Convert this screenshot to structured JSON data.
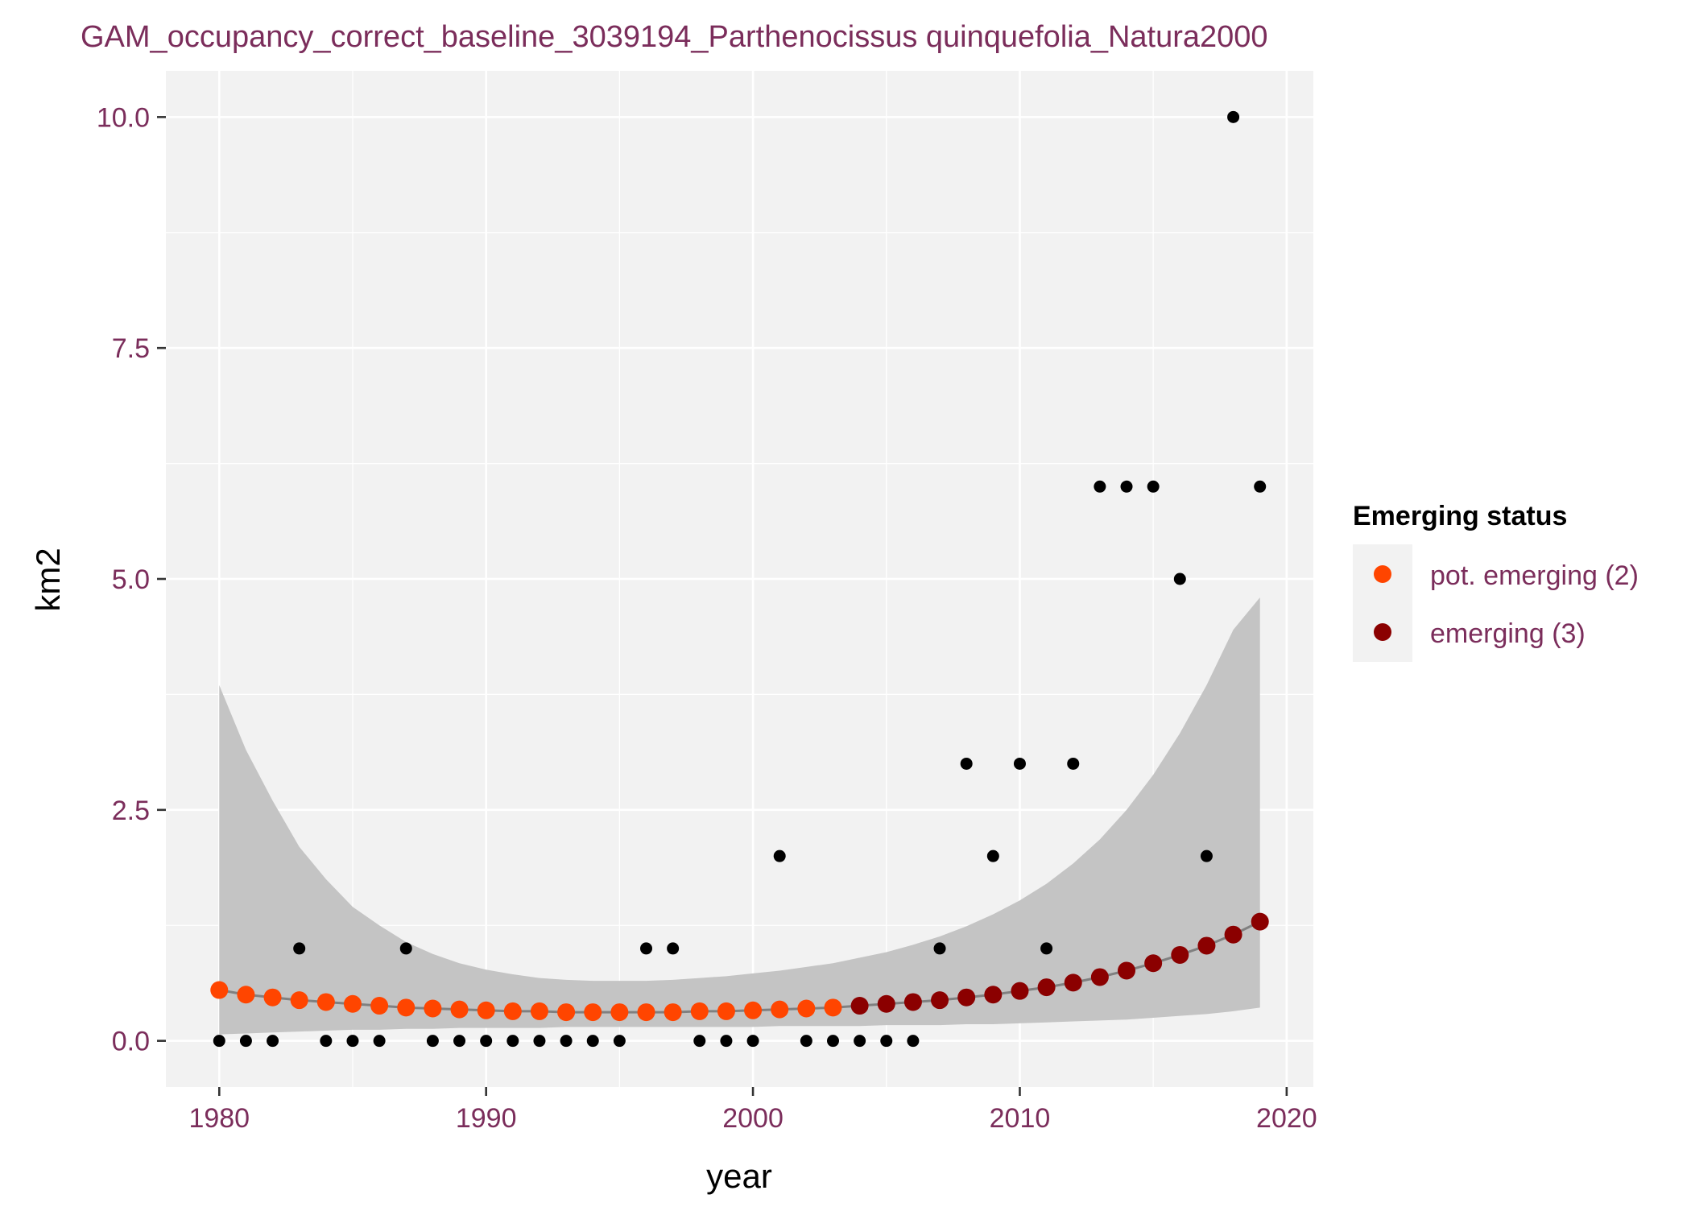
{
  "chart_data": {
    "type": "scatter",
    "title": "GAM_occupancy_correct_baseline_3039194_Parthenocissus quinquefolia_Natura2000",
    "xlabel": "year",
    "ylabel": "km2",
    "xlim": [
      1978,
      2021
    ],
    "ylim": [
      -0.5,
      10.5
    ],
    "x_ticks": [
      1980,
      1990,
      2000,
      2010,
      2020
    ],
    "x_tick_labels": [
      "1980",
      "1990",
      "2000",
      "2010",
      "2020"
    ],
    "y_ticks": [
      0,
      2.5,
      5,
      7.5,
      10
    ],
    "y_tick_labels": [
      "0.0",
      "2.5",
      "5.0",
      "7.5",
      "10.0"
    ],
    "grid": true,
    "legend": {
      "title": "Emerging status",
      "position": "right",
      "entries": [
        {
          "label": "pot. emerging (2)",
          "color": "#ff4500"
        },
        {
          "label": "emerging (3)",
          "color": "#8b0000"
        }
      ]
    },
    "colors": {
      "panel": "#f2f2f2",
      "grid": "#ffffff",
      "ribbon": "#c4c4c4",
      "fit_line": "#808080",
      "observed": "#000000",
      "pot_emerging": "#ff4500",
      "emerging": "#8b0000"
    },
    "observed": {
      "x": [
        1980,
        1981,
        1982,
        1983,
        1984,
        1985,
        1986,
        1987,
        1988,
        1989,
        1990,
        1991,
        1992,
        1993,
        1994,
        1995,
        1996,
        1997,
        1998,
        1999,
        2000,
        2001,
        2002,
        2003,
        2004,
        2005,
        2006,
        2007,
        2008,
        2009,
        2010,
        2011,
        2012,
        2013,
        2014,
        2015,
        2016,
        2017,
        2018,
        2019
      ],
      "y": [
        0,
        0,
        0,
        1,
        0,
        0,
        0,
        1,
        0,
        0,
        0,
        0,
        0,
        0,
        0,
        0,
        1,
        1,
        0,
        0,
        0,
        2,
        0,
        0,
        0,
        0,
        0,
        1,
        3,
        2,
        3,
        1,
        3,
        6,
        6,
        6,
        5,
        2,
        10,
        6
      ]
    },
    "fit": {
      "x": [
        1980,
        1981,
        1982,
        1983,
        1984,
        1985,
        1986,
        1987,
        1988,
        1989,
        1990,
        1991,
        1992,
        1993,
        1994,
        1995,
        1996,
        1997,
        1998,
        1999,
        2000,
        2001,
        2002,
        2003,
        2004,
        2005,
        2006,
        2007,
        2008,
        2009,
        2010,
        2011,
        2012,
        2013,
        2014,
        2015,
        2016,
        2017,
        2018,
        2019
      ],
      "y": [
        0.55,
        0.5,
        0.47,
        0.44,
        0.42,
        0.4,
        0.38,
        0.36,
        0.35,
        0.34,
        0.33,
        0.32,
        0.32,
        0.31,
        0.31,
        0.31,
        0.31,
        0.31,
        0.32,
        0.32,
        0.33,
        0.34,
        0.35,
        0.36,
        0.38,
        0.4,
        0.42,
        0.44,
        0.47,
        0.5,
        0.54,
        0.58,
        0.63,
        0.69,
        0.76,
        0.84,
        0.93,
        1.03,
        1.15,
        1.29
      ],
      "status": [
        "pot. emerging (2)",
        "pot. emerging (2)",
        "pot. emerging (2)",
        "pot. emerging (2)",
        "pot. emerging (2)",
        "pot. emerging (2)",
        "pot. emerging (2)",
        "pot. emerging (2)",
        "pot. emerging (2)",
        "pot. emerging (2)",
        "pot. emerging (2)",
        "pot. emerging (2)",
        "pot. emerging (2)",
        "pot. emerging (2)",
        "pot. emerging (2)",
        "pot. emerging (2)",
        "pot. emerging (2)",
        "pot. emerging (2)",
        "pot. emerging (2)",
        "pot. emerging (2)",
        "pot. emerging (2)",
        "pot. emerging (2)",
        "pot. emerging (2)",
        "pot. emerging (2)",
        "emerging (3)",
        "emerging (3)",
        "emerging (3)",
        "emerging (3)",
        "emerging (3)",
        "emerging (3)",
        "emerging (3)",
        "emerging (3)",
        "emerging (3)",
        "emerging (3)",
        "emerging (3)",
        "emerging (3)",
        "emerging (3)",
        "emerging (3)",
        "emerging (3)",
        "emerging (3)"
      ]
    },
    "ci_band": {
      "x": [
        1980,
        1981,
        1982,
        1983,
        1984,
        1985,
        1986,
        1987,
        1988,
        1989,
        1990,
        1991,
        1992,
        1993,
        1994,
        1995,
        1996,
        1997,
        1998,
        1999,
        2000,
        2001,
        2002,
        2003,
        2004,
        2005,
        2006,
        2007,
        2008,
        2009,
        2010,
        2011,
        2012,
        2013,
        2014,
        2015,
        2016,
        2017,
        2018,
        2019
      ],
      "lower": [
        0.07,
        0.08,
        0.09,
        0.1,
        0.11,
        0.12,
        0.12,
        0.13,
        0.13,
        0.14,
        0.14,
        0.14,
        0.14,
        0.15,
        0.15,
        0.15,
        0.15,
        0.15,
        0.15,
        0.15,
        0.15,
        0.16,
        0.16,
        0.16,
        0.16,
        0.17,
        0.17,
        0.17,
        0.18,
        0.18,
        0.19,
        0.2,
        0.21,
        0.22,
        0.23,
        0.25,
        0.27,
        0.29,
        0.32,
        0.36
      ],
      "upper": [
        3.85,
        3.15,
        2.6,
        2.1,
        1.75,
        1.45,
        1.25,
        1.07,
        0.94,
        0.84,
        0.77,
        0.72,
        0.68,
        0.66,
        0.65,
        0.65,
        0.65,
        0.66,
        0.68,
        0.7,
        0.73,
        0.76,
        0.8,
        0.84,
        0.9,
        0.96,
        1.04,
        1.13,
        1.24,
        1.37,
        1.52,
        1.7,
        1.92,
        2.18,
        2.5,
        2.88,
        3.33,
        3.85,
        4.45,
        4.8
      ]
    }
  }
}
